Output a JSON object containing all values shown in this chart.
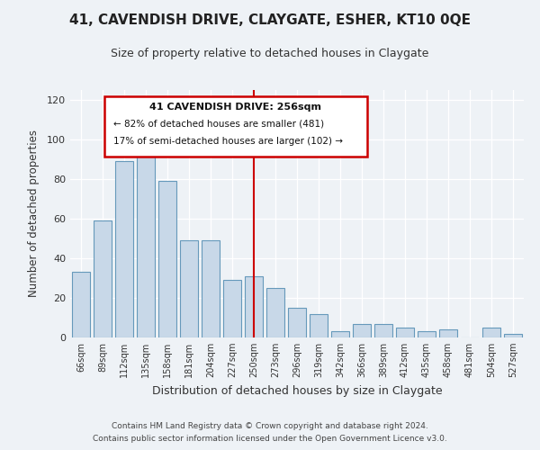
{
  "title": "41, CAVENDISH DRIVE, CLAYGATE, ESHER, KT10 0QE",
  "subtitle": "Size of property relative to detached houses in Claygate",
  "xlabel": "Distribution of detached houses by size in Claygate",
  "ylabel": "Number of detached properties",
  "bar_color": "#c8d8e8",
  "bar_edge_color": "#6699bb",
  "categories": [
    "66sqm",
    "89sqm",
    "112sqm",
    "135sqm",
    "158sqm",
    "181sqm",
    "204sqm",
    "227sqm",
    "250sqm",
    "273sqm",
    "296sqm",
    "319sqm",
    "342sqm",
    "366sqm",
    "389sqm",
    "412sqm",
    "435sqm",
    "458sqm",
    "481sqm",
    "504sqm",
    "527sqm"
  ],
  "values": [
    33,
    59,
    89,
    95,
    79,
    49,
    49,
    29,
    31,
    25,
    15,
    12,
    3,
    7,
    7,
    5,
    3,
    4,
    0,
    5,
    2
  ],
  "vline_x_index": 8,
  "vline_color": "#cc0000",
  "annotation_title": "41 CAVENDISH DRIVE: 256sqm",
  "annotation_line1": "← 82% of detached houses are smaller (481)",
  "annotation_line2": "17% of semi-detached houses are larger (102) →",
  "annotation_box_color": "#ffffff",
  "annotation_box_edge": "#cc0000",
  "ylim": [
    0,
    125
  ],
  "yticks": [
    0,
    20,
    40,
    60,
    80,
    100,
    120
  ],
  "footer1": "Contains HM Land Registry data © Crown copyright and database right 2024.",
  "footer2": "Contains public sector information licensed under the Open Government Licence v3.0.",
  "bg_color": "#eef2f6"
}
